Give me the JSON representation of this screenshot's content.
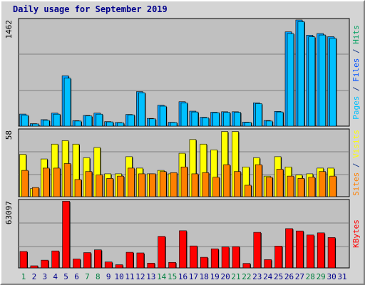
{
  "title": "Daily usage for September 2019",
  "chart_data": [
    {
      "type": "bar",
      "panel": "top",
      "y_max_label": "1462",
      "ylim": [
        0,
        1462
      ],
      "legend": [
        {
          "text": "Pages",
          "color": "#00c0ff"
        },
        {
          "text": " / ",
          "color": "#1a3c8c"
        },
        {
          "text": "Files",
          "color": "#0050ff"
        },
        {
          "text": " / ",
          "color": "#1a3c8c"
        },
        {
          "text": "Hits",
          "color": "#00a060"
        }
      ],
      "grid": true,
      "series": [
        {
          "name": "Files",
          "color": "#00a0ff",
          "values": [
            166,
            34,
            89,
            179,
            693,
            75,
            147,
            179,
            62,
            50,
            161,
            475,
            106,
            288,
            53,
            336,
            206,
            122,
            192,
            198,
            198,
            56,
            321,
            77,
            203,
            1298,
            1462,
            1252,
            1275,
            1232
          ]
        },
        {
          "name": "Pages",
          "color": "#00c0ff",
          "values": [
            150,
            30,
            80,
            165,
            660,
            70,
            140,
            165,
            58,
            45,
            155,
            460,
            100,
            275,
            50,
            320,
            195,
            115,
            185,
            190,
            190,
            52,
            310,
            70,
            195,
            1275,
            1440,
            1230,
            1255,
            1210
          ]
        }
      ]
    },
    {
      "type": "bar",
      "panel": "middle",
      "y_max_label": "58",
      "ylim": [
        0,
        58
      ],
      "legend": [
        {
          "text": "Sites",
          "color": "#ff8000"
        },
        {
          "text": " / ",
          "color": "#1a3c8c"
        },
        {
          "text": "Visits",
          "color": "#ffff00"
        }
      ],
      "grid": true,
      "series": [
        {
          "name": "Visits",
          "color": "#ffff00",
          "values": [
            37,
            7,
            33,
            46,
            49,
            46,
            34,
            43,
            20,
            20,
            35,
            25,
            20,
            23,
            20,
            38,
            50,
            46,
            41,
            57,
            57,
            26,
            34,
            18,
            35,
            26,
            19,
            20,
            25,
            25
          ]
        },
        {
          "name": "Sites",
          "color": "#ff8000",
          "values": [
            23,
            8,
            25,
            25,
            29,
            15,
            22,
            19,
            16,
            18,
            25,
            20,
            20,
            22,
            21,
            26,
            20,
            21,
            17,
            28,
            22,
            10,
            28,
            17,
            24,
            18,
            16,
            17,
            22,
            18
          ]
        }
      ]
    },
    {
      "type": "bar",
      "panel": "bottom",
      "y_max_label": "63097",
      "ylim": [
        0,
        63097
      ],
      "legend": [
        {
          "text": "KBytes",
          "color": "#ff0000"
        }
      ],
      "grid": true,
      "series": [
        {
          "name": "KBytes",
          "color": "#ff0000",
          "values": [
            15500,
            2000,
            7300,
            16000,
            62800,
            8400,
            14400,
            17000,
            5600,
            3000,
            14700,
            14100,
            4500,
            29700,
            5200,
            35000,
            20700,
            10000,
            18000,
            19700,
            20000,
            4200,
            33500,
            7800,
            20600,
            37000,
            34800,
            31000,
            33000,
            28600
          ]
        }
      ]
    }
  ],
  "x_labels": [
    "1",
    "2",
    "3",
    "4",
    "5",
    "6",
    "7",
    "8",
    "9",
    "10",
    "11",
    "12",
    "13",
    "14",
    "15",
    "16",
    "17",
    "18",
    "19",
    "20",
    "21",
    "22",
    "23",
    "24",
    "25",
    "26",
    "27",
    "28",
    "29",
    "30",
    "31"
  ],
  "weekend_days": [
    1,
    7,
    8,
    14,
    15,
    21,
    22,
    28,
    29
  ],
  "colors": {
    "weekday_label": "#00008b",
    "weekend_label": "#007f3f",
    "plot_bg": "#c0c0c0",
    "grid": "#808080"
  }
}
